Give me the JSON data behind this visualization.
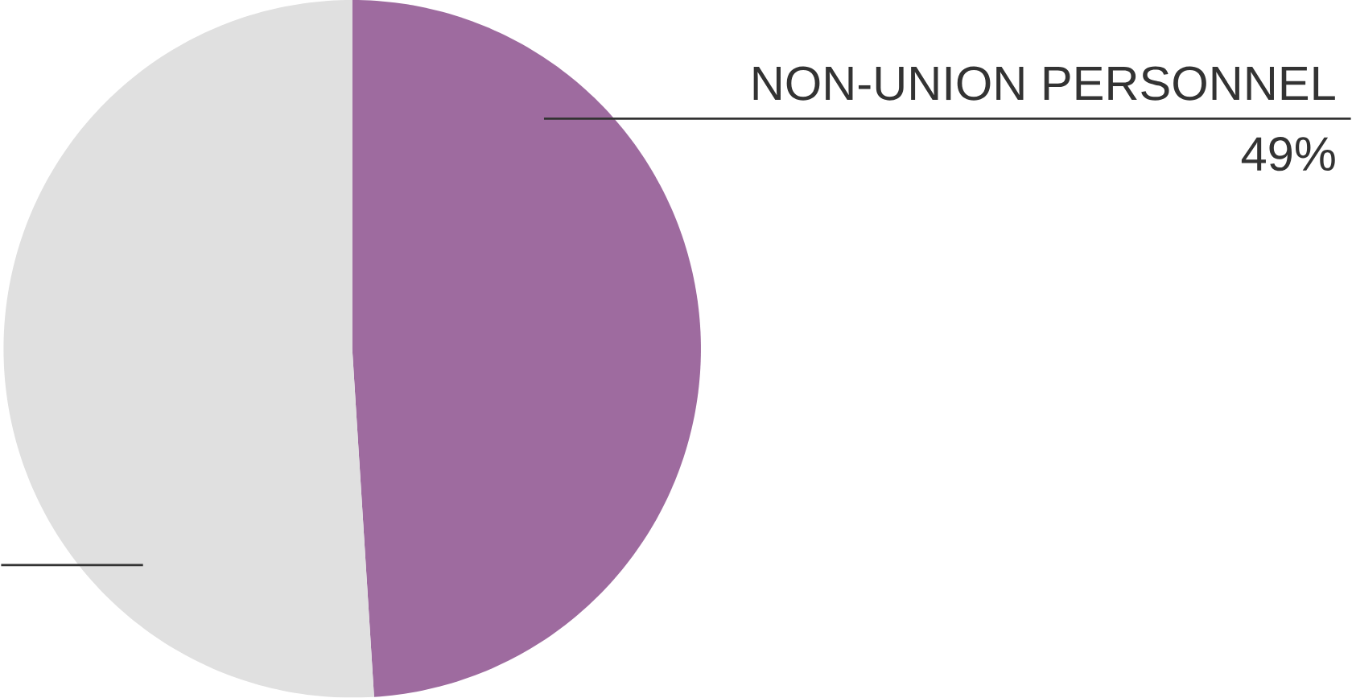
{
  "chart_data": {
    "type": "pie",
    "categories": [
      "NON-UNION PERSONNEL",
      null
    ],
    "values": [
      49,
      51
    ],
    "colors": [
      "#9e6b9f",
      "#e0e0e0"
    ],
    "value_labels": [
      "49%",
      null
    ]
  }
}
